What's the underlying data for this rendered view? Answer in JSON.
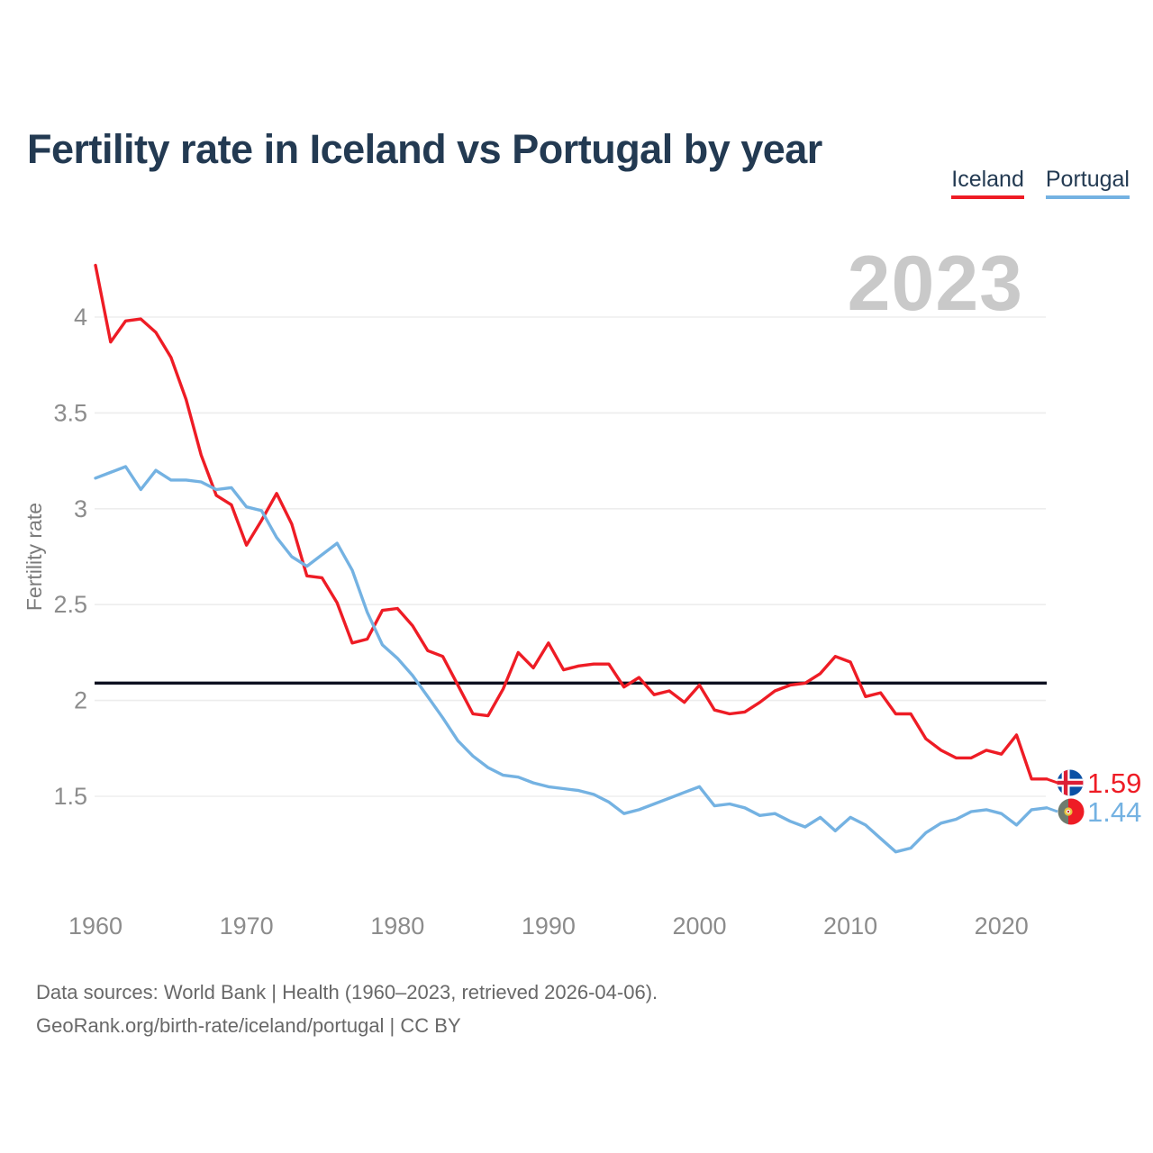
{
  "page": {
    "title": "Fertility rate in Iceland vs Portugal by year",
    "watermark_year": "2023",
    "footer_line1": "Data sources: World Bank | Health (1960–2023, retrieved 2026-04-06).",
    "footer_line2": "GeoRank.org/birth-rate/iceland/portugal | CC BY"
  },
  "legend": {
    "items": [
      {
        "label": "Iceland",
        "color": "#ee1c25"
      },
      {
        "label": "Portugal",
        "color": "#74b2e2"
      }
    ]
  },
  "chart_data": {
    "type": "line",
    "title": "Fertility rate in Iceland vs Portugal by year",
    "xlabel": "",
    "ylabel": "Fertility rate",
    "x_ticks": [
      1960,
      1970,
      1980,
      1990,
      2000,
      2010,
      2020
    ],
    "y_ticks": [
      4,
      3.5,
      3,
      2.5,
      2,
      1.5
    ],
    "xlim": [
      1960,
      2023
    ],
    "ylim": [
      1.05,
      4.35
    ],
    "grid": "horizontal-only",
    "legend_position": "top-right",
    "reference_line": {
      "value": 2.1,
      "color": "#0d1020"
    },
    "years": [
      1960,
      1961,
      1962,
      1963,
      1964,
      1965,
      1966,
      1967,
      1968,
      1969,
      1970,
      1971,
      1972,
      1973,
      1974,
      1975,
      1976,
      1977,
      1978,
      1979,
      1980,
      1981,
      1982,
      1983,
      1984,
      1985,
      1986,
      1987,
      1988,
      1989,
      1990,
      1991,
      1992,
      1993,
      1994,
      1995,
      1996,
      1997,
      1998,
      1999,
      2000,
      2001,
      2002,
      2003,
      2004,
      2005,
      2006,
      2007,
      2008,
      2009,
      2010,
      2011,
      2012,
      2013,
      2014,
      2015,
      2016,
      2017,
      2018,
      2019,
      2020,
      2021,
      2022,
      2023
    ],
    "series": [
      {
        "name": "Iceland",
        "color": "#ee1c25",
        "flag_icon": "iceland-flag-icon",
        "end_label": "1.59",
        "values": [
          4.27,
          3.87,
          3.98,
          3.99,
          3.92,
          3.79,
          3.57,
          3.28,
          3.07,
          3.02,
          2.81,
          2.94,
          3.08,
          2.92,
          2.65,
          2.64,
          2.51,
          2.3,
          2.32,
          2.47,
          2.48,
          2.39,
          2.26,
          2.23,
          2.08,
          1.93,
          1.92,
          2.06,
          2.25,
          2.17,
          2.3,
          2.16,
          2.18,
          2.19,
          2.19,
          2.07,
          2.12,
          2.03,
          2.05,
          1.99,
          2.08,
          1.95,
          1.93,
          1.94,
          1.99,
          2.05,
          2.08,
          2.09,
          2.14,
          2.23,
          2.2,
          2.02,
          2.04,
          1.93,
          1.93,
          1.8,
          1.74,
          1.7,
          1.7,
          1.74,
          1.72,
          1.82,
          1.59,
          1.59
        ]
      },
      {
        "name": "Portugal",
        "color": "#74b2e2",
        "flag_icon": "portugal-flag-icon",
        "end_label": "1.44",
        "values": [
          3.16,
          3.19,
          3.22,
          3.1,
          3.2,
          3.15,
          3.15,
          3.14,
          3.1,
          3.11,
          3.01,
          2.99,
          2.85,
          2.75,
          2.7,
          2.76,
          2.82,
          2.68,
          2.46,
          2.29,
          2.22,
          2.13,
          2.02,
          1.91,
          1.79,
          1.71,
          1.65,
          1.61,
          1.6,
          1.57,
          1.55,
          1.54,
          1.53,
          1.51,
          1.47,
          1.41,
          1.43,
          1.46,
          1.49,
          1.52,
          1.55,
          1.45,
          1.46,
          1.44,
          1.4,
          1.41,
          1.37,
          1.34,
          1.39,
          1.32,
          1.39,
          1.35,
          1.28,
          1.21,
          1.23,
          1.31,
          1.36,
          1.38,
          1.42,
          1.43,
          1.41,
          1.35,
          1.43,
          1.44
        ]
      }
    ]
  }
}
